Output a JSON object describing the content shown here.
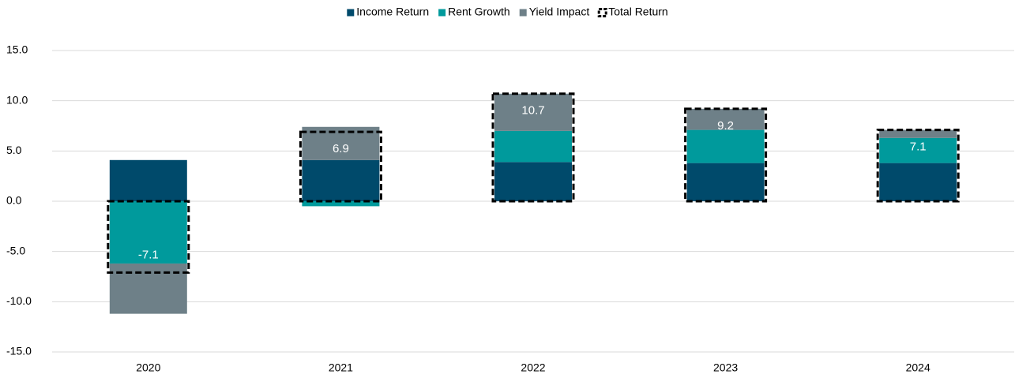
{
  "chart_data": {
    "type": "stacked_bar",
    "categories": [
      "2020",
      "2021",
      "2022",
      "2023",
      "2024"
    ],
    "series": [
      {
        "name": "Income Return",
        "color": "#004a6b",
        "values": [
          4.1,
          4.1,
          3.9,
          3.8,
          3.8
        ]
      },
      {
        "name": "Rent Growth",
        "color": "#009a9c",
        "values": [
          -6.2,
          -0.5,
          3.1,
          3.3,
          2.5
        ]
      },
      {
        "name": "Yield Impact",
        "color": "#6e8088",
        "values": [
          -5.0,
          3.3,
          3.7,
          2.1,
          0.8
        ]
      }
    ],
    "total": {
      "name": "Total Return",
      "color": "#000000",
      "values": [
        -7.1,
        6.9,
        10.7,
        9.2,
        7.1
      ]
    },
    "ylim": [
      -15,
      15
    ],
    "yticks": [
      {
        "value": -15,
        "label": "-15.0"
      },
      {
        "value": -10,
        "label": "-10.0"
      },
      {
        "value": -5,
        "label": "-5.0"
      },
      {
        "value": 0,
        "label": "0.0"
      },
      {
        "value": 5,
        "label": "5.0"
      },
      {
        "value": 10,
        "label": "10.0"
      },
      {
        "value": 15,
        "label": "15.0"
      }
    ],
    "grid": true,
    "legend": "top"
  }
}
